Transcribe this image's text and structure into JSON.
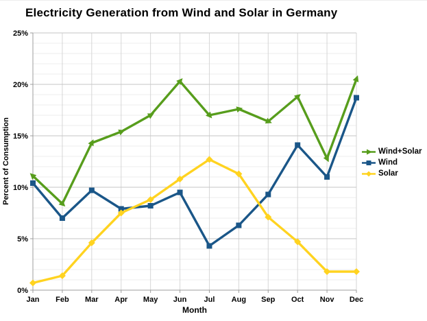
{
  "title": "Electricity Generation from Wind and Solar in Germany",
  "chart_data": {
    "type": "line",
    "title": "Electricity Generation from Wind and Solar in Germany",
    "xlabel": "Month",
    "ylabel": "Percent of Consumption",
    "ylim": [
      0,
      25
    ],
    "ytick_major": 5,
    "ytick_minor": 1,
    "ytick_labels": [
      "0%",
      "5%",
      "10%",
      "15%",
      "20%",
      "25%"
    ],
    "grid": true,
    "legend_position": "right",
    "categories": [
      "Jan",
      "Feb",
      "Mar",
      "Apr",
      "May",
      "Jun",
      "Jul",
      "Aug",
      "Sep",
      "Oct",
      "Nov",
      "Dec"
    ],
    "series": [
      {
        "name": "Wind+Solar",
        "color": "#579d1c",
        "marker": "arrow",
        "values": [
          11.1,
          8.4,
          14.3,
          15.4,
          17.0,
          20.3,
          17.0,
          17.6,
          16.4,
          18.8,
          12.8,
          20.5
        ]
      },
      {
        "name": "Wind",
        "color": "#1a5688",
        "marker": "square",
        "values": [
          10.4,
          7.0,
          9.7,
          7.9,
          8.2,
          9.5,
          4.3,
          6.3,
          9.3,
          14.1,
          11.0,
          18.7
        ]
      },
      {
        "name": "Solar",
        "color": "#ffd320",
        "marker": "diamond",
        "values": [
          0.7,
          1.4,
          4.6,
          7.5,
          8.8,
          10.8,
          12.7,
          11.3,
          7.1,
          4.7,
          1.8,
          1.8
        ]
      }
    ]
  }
}
